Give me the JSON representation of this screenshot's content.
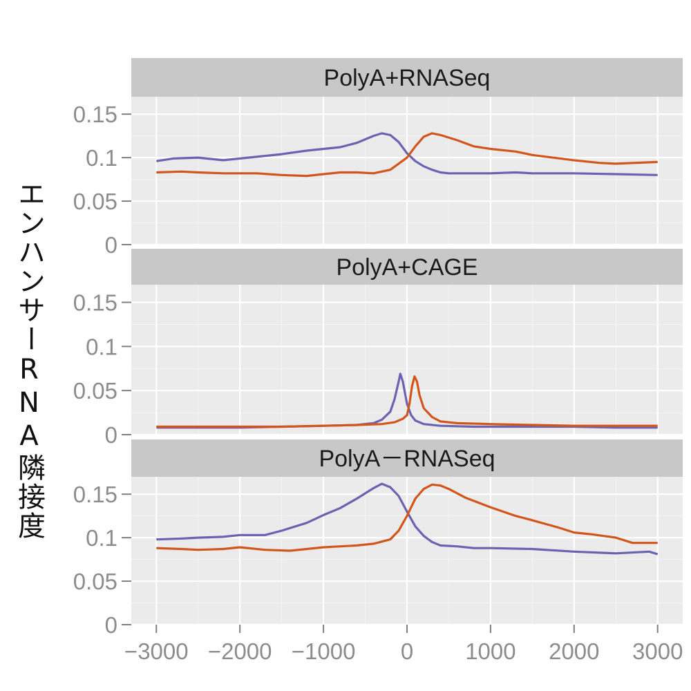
{
  "figure": {
    "ylabel": "エンハンサーRNA隣接度"
  },
  "chart_data": {
    "type": "line",
    "xlim": [
      -3300,
      3300
    ],
    "ylim": [
      0,
      0.17
    ],
    "xticks": [
      -3000,
      -2000,
      -1000,
      0,
      1000,
      2000,
      3000
    ],
    "xtick_labels": [
      "−3000",
      "−2000",
      "−1000",
      "0",
      "1000",
      "2000",
      "3000"
    ],
    "yticks": [
      0,
      0.05,
      0.1,
      0.15
    ],
    "ytick_labels": [
      "0",
      "0.05",
      "0.1",
      "0.15"
    ],
    "ylabel": "エンハンサーRNA隣接度",
    "grid": true,
    "series_colors": [
      "#6b62b0",
      "#d2561b"
    ],
    "panels": [
      {
        "title": "PolyA+RNASeq",
        "series": [
          {
            "color": "#6b62b0",
            "points": [
              [
                -3000,
                0.096
              ],
              [
                -2800,
                0.099
              ],
              [
                -2500,
                0.1
              ],
              [
                -2200,
                0.097
              ],
              [
                -2000,
                0.099
              ],
              [
                -1800,
                0.101
              ],
              [
                -1500,
                0.104
              ],
              [
                -1200,
                0.108
              ],
              [
                -1000,
                0.11
              ],
              [
                -800,
                0.112
              ],
              [
                -600,
                0.117
              ],
              [
                -400,
                0.125
              ],
              [
                -300,
                0.128
              ],
              [
                -200,
                0.126
              ],
              [
                -100,
                0.118
              ],
              [
                0,
                0.105
              ],
              [
                100,
                0.096
              ],
              [
                200,
                0.09
              ],
              [
                300,
                0.086
              ],
              [
                400,
                0.083
              ],
              [
                500,
                0.082
              ],
              [
                700,
                0.082
              ],
              [
                1000,
                0.082
              ],
              [
                1300,
                0.083
              ],
              [
                1500,
                0.082
              ],
              [
                2000,
                0.082
              ],
              [
                2500,
                0.081
              ],
              [
                3000,
                0.08
              ]
            ]
          },
          {
            "color": "#d2561b",
            "points": [
              [
                -3000,
                0.083
              ],
              [
                -2700,
                0.084
              ],
              [
                -2500,
                0.083
              ],
              [
                -2200,
                0.082
              ],
              [
                -2000,
                0.082
              ],
              [
                -1800,
                0.082
              ],
              [
                -1500,
                0.08
              ],
              [
                -1200,
                0.079
              ],
              [
                -1000,
                0.081
              ],
              [
                -800,
                0.083
              ],
              [
                -600,
                0.083
              ],
              [
                -400,
                0.082
              ],
              [
                -200,
                0.086
              ],
              [
                -100,
                0.093
              ],
              [
                0,
                0.1
              ],
              [
                100,
                0.113
              ],
              [
                200,
                0.124
              ],
              [
                300,
                0.128
              ],
              [
                400,
                0.126
              ],
              [
                600,
                0.12
              ],
              [
                800,
                0.113
              ],
              [
                1000,
                0.11
              ],
              [
                1300,
                0.107
              ],
              [
                1500,
                0.103
              ],
              [
                2000,
                0.097
              ],
              [
                2300,
                0.094
              ],
              [
                2500,
                0.093
              ],
              [
                3000,
                0.095
              ]
            ]
          }
        ]
      },
      {
        "title": "PolyA+CAGE",
        "series": [
          {
            "color": "#6b62b0",
            "points": [
              [
                -3000,
                0.008
              ],
              [
                -2500,
                0.008
              ],
              [
                -2000,
                0.008
              ],
              [
                -1500,
                0.009
              ],
              [
                -1000,
                0.01
              ],
              [
                -600,
                0.011
              ],
              [
                -400,
                0.013
              ],
              [
                -300,
                0.017
              ],
              [
                -200,
                0.026
              ],
              [
                -150,
                0.04
              ],
              [
                -100,
                0.06
              ],
              [
                -80,
                0.069
              ],
              [
                -50,
                0.06
              ],
              [
                0,
                0.035
              ],
              [
                50,
                0.022
              ],
              [
                100,
                0.016
              ],
              [
                200,
                0.012
              ],
              [
                400,
                0.01
              ],
              [
                800,
                0.009
              ],
              [
                1500,
                0.009
              ],
              [
                2000,
                0.009
              ],
              [
                2500,
                0.008
              ],
              [
                3000,
                0.008
              ]
            ]
          },
          {
            "color": "#d2561b",
            "points": [
              [
                -3000,
                0.009
              ],
              [
                -2500,
                0.009
              ],
              [
                -2000,
                0.009
              ],
              [
                -1500,
                0.009
              ],
              [
                -1000,
                0.01
              ],
              [
                -600,
                0.011
              ],
              [
                -300,
                0.012
              ],
              [
                -150,
                0.014
              ],
              [
                -50,
                0.018
              ],
              [
                0,
                0.022
              ],
              [
                30,
                0.035
              ],
              [
                60,
                0.055
              ],
              [
                90,
                0.066
              ],
              [
                120,
                0.06
              ],
              [
                150,
                0.045
              ],
              [
                200,
                0.03
              ],
              [
                300,
                0.02
              ],
              [
                400,
                0.015
              ],
              [
                600,
                0.013
              ],
              [
                1000,
                0.012
              ],
              [
                1500,
                0.011
              ],
              [
                2000,
                0.01
              ],
              [
                2500,
                0.01
              ],
              [
                3000,
                0.01
              ]
            ]
          }
        ]
      },
      {
        "title": "PolyA－RNASeq",
        "series": [
          {
            "color": "#6b62b0",
            "points": [
              [
                -3000,
                0.098
              ],
              [
                -2700,
                0.099
              ],
              [
                -2500,
                0.1
              ],
              [
                -2200,
                0.101
              ],
              [
                -2000,
                0.103
              ],
              [
                -1700,
                0.103
              ],
              [
                -1500,
                0.108
              ],
              [
                -1200,
                0.117
              ],
              [
                -1000,
                0.126
              ],
              [
                -800,
                0.134
              ],
              [
                -600,
                0.145
              ],
              [
                -400,
                0.157
              ],
              [
                -300,
                0.162
              ],
              [
                -200,
                0.158
              ],
              [
                -100,
                0.148
              ],
              [
                0,
                0.13
              ],
              [
                100,
                0.113
              ],
              [
                200,
                0.102
              ],
              [
                300,
                0.095
              ],
              [
                400,
                0.091
              ],
              [
                600,
                0.09
              ],
              [
                800,
                0.088
              ],
              [
                1000,
                0.088
              ],
              [
                1500,
                0.087
              ],
              [
                2000,
                0.084
              ],
              [
                2500,
                0.082
              ],
              [
                2900,
                0.084
              ],
              [
                3000,
                0.081
              ]
            ]
          },
          {
            "color": "#d2561b",
            "points": [
              [
                -3000,
                0.088
              ],
              [
                -2700,
                0.087
              ],
              [
                -2500,
                0.086
              ],
              [
                -2200,
                0.087
              ],
              [
                -2000,
                0.089
              ],
              [
                -1700,
                0.086
              ],
              [
                -1400,
                0.085
              ],
              [
                -1200,
                0.087
              ],
              [
                -1000,
                0.089
              ],
              [
                -800,
                0.09
              ],
              [
                -600,
                0.091
              ],
              [
                -400,
                0.093
              ],
              [
                -200,
                0.098
              ],
              [
                -100,
                0.108
              ],
              [
                0,
                0.125
              ],
              [
                100,
                0.145
              ],
              [
                200,
                0.156
              ],
              [
                300,
                0.161
              ],
              [
                400,
                0.16
              ],
              [
                500,
                0.156
              ],
              [
                700,
                0.146
              ],
              [
                1000,
                0.135
              ],
              [
                1300,
                0.125
              ],
              [
                1500,
                0.12
              ],
              [
                1800,
                0.112
              ],
              [
                2000,
                0.106
              ],
              [
                2200,
                0.104
              ],
              [
                2500,
                0.1
              ],
              [
                2700,
                0.094
              ],
              [
                3000,
                0.094
              ]
            ]
          }
        ]
      }
    ]
  }
}
